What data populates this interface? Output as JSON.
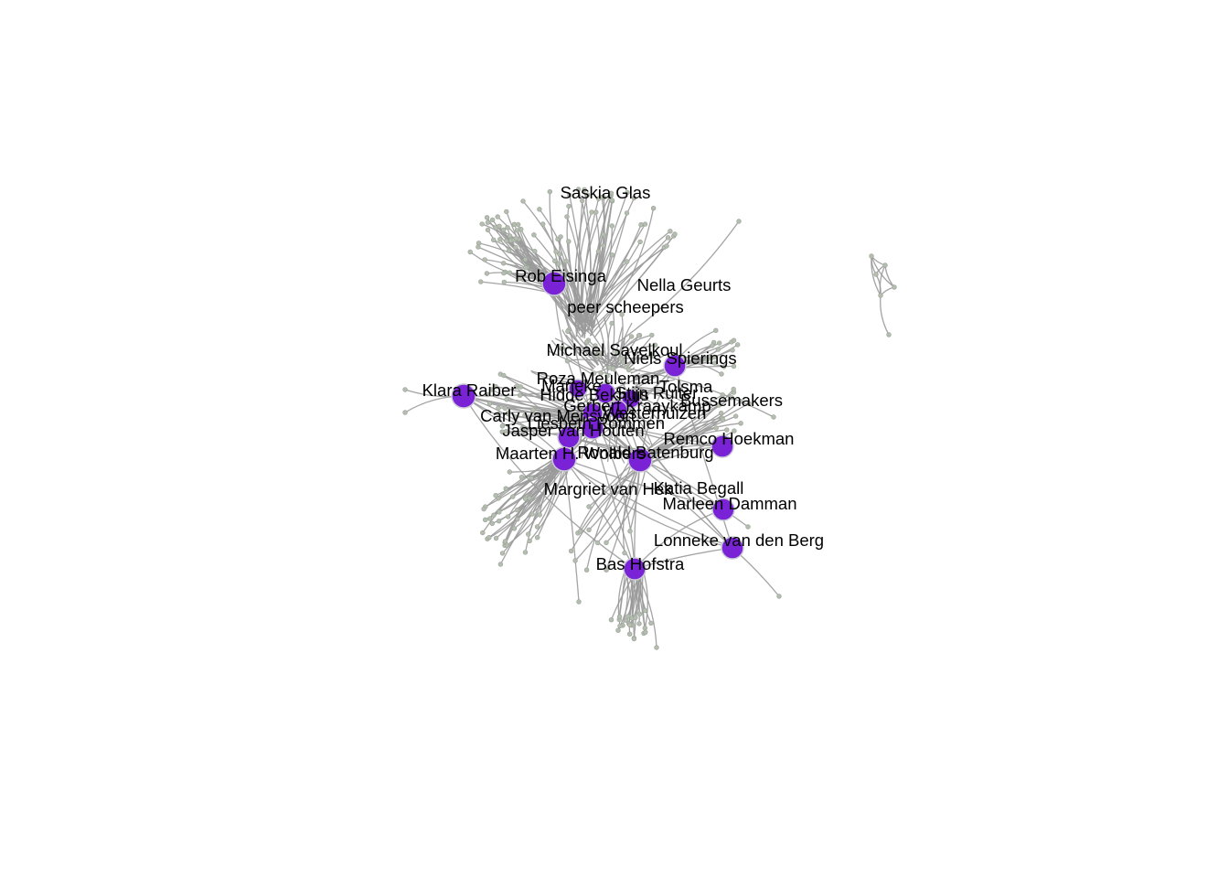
{
  "colors": {
    "background": "#ffffff",
    "edge": "#9a9a9a",
    "hub_node": "#7a22d6",
    "leaf_node": "#b4bdb0",
    "label_text": "#000000"
  },
  "chart_data": {
    "type": "network",
    "title": "",
    "hubs": [
      {
        "name": "Saskia Glas"
      },
      {
        "name": "Rob Eisinga"
      },
      {
        "name": "Nella Geurts"
      },
      {
        "name": "peer scheepers"
      },
      {
        "name": "Michael Savelkoul"
      },
      {
        "name": "Niels Spierings"
      },
      {
        "name": "Roza Meuleman"
      },
      {
        "name": "Klara Raiber"
      },
      {
        "name": "Marieke"
      },
      {
        "name": "Tolsma"
      },
      {
        "name": "Hidde Bekhuis"
      },
      {
        "name": "Gerbert Kraaykamp"
      },
      {
        "name": "Stijn Ruiter"
      },
      {
        "name": "Bussemakers"
      },
      {
        "name": "Carly van Mensvoort"
      },
      {
        "name": "Westerhuizen"
      },
      {
        "name": "Liesbeth Rommen"
      },
      {
        "name": "Jasper van Houten"
      },
      {
        "name": "Remco Hoekman"
      },
      {
        "name": "Maarten H. Wolbers"
      },
      {
        "name": "Ronald Batenburg"
      },
      {
        "name": "Margriet van Hek"
      },
      {
        "name": "Katia Begall"
      },
      {
        "name": "Marleen Damman"
      },
      {
        "name": "Lonneke van den Berg"
      },
      {
        "name": "Bas Hofstra"
      }
    ]
  }
}
